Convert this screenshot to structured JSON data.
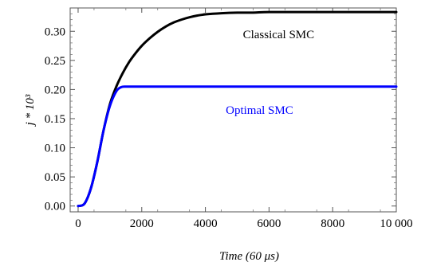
{
  "chart_data": {
    "type": "line",
    "title": "",
    "xlabel": "Time  (60 μs)",
    "ylabel": "j * 10³",
    "xlim": [
      -250,
      10000
    ],
    "ylim": [
      -0.01,
      0.34
    ],
    "x_ticks": [
      0,
      2000,
      4000,
      6000,
      8000,
      10000
    ],
    "x_tick_labels": [
      "0",
      "2000",
      "4000",
      "6000",
      "8000",
      "10 000"
    ],
    "y_ticks": [
      0.0,
      0.05,
      0.1,
      0.15,
      0.2,
      0.25,
      0.3
    ],
    "y_tick_labels": [
      "0.00",
      "0.05",
      "0.10",
      "0.15",
      "0.20",
      "0.25",
      "0.30"
    ],
    "grid": false,
    "series": [
      {
        "name": "Classical SMC",
        "color": "#000000",
        "x": [
          0,
          200,
          400,
          600,
          800,
          1000,
          1200,
          1400,
          1600,
          1800,
          2000,
          2250,
          2500,
          2750,
          3000,
          3250,
          3500,
          3750,
          4000,
          4500,
          5000,
          5500,
          6000,
          7000,
          8000,
          9000,
          10000
        ],
        "y": [
          0.0,
          0.004,
          0.03,
          0.075,
          0.13,
          0.175,
          0.205,
          0.228,
          0.247,
          0.262,
          0.275,
          0.288,
          0.299,
          0.308,
          0.315,
          0.32,
          0.324,
          0.327,
          0.329,
          0.331,
          0.332,
          0.332,
          0.333,
          0.333,
          0.333,
          0.333,
          0.333
        ]
      },
      {
        "name": "Optimal SMC",
        "color": "#0000ff",
        "x": [
          0,
          200,
          400,
          600,
          800,
          1000,
          1200,
          1350,
          1500,
          1700,
          2000,
          3000,
          4000,
          5000,
          6000,
          7000,
          8000,
          9000,
          10000
        ],
        "y": [
          0.0,
          0.004,
          0.03,
          0.075,
          0.13,
          0.172,
          0.197,
          0.204,
          0.205,
          0.205,
          0.205,
          0.205,
          0.205,
          0.205,
          0.205,
          0.205,
          0.205,
          0.205,
          0.205
        ]
      }
    ],
    "annotations": [
      {
        "text": "Classical SMC",
        "x": 6300,
        "y": 0.295,
        "color": "#000000"
      },
      {
        "text": "Optimal SMC",
        "x": 5700,
        "y": 0.165,
        "color": "#0000ff"
      }
    ]
  }
}
